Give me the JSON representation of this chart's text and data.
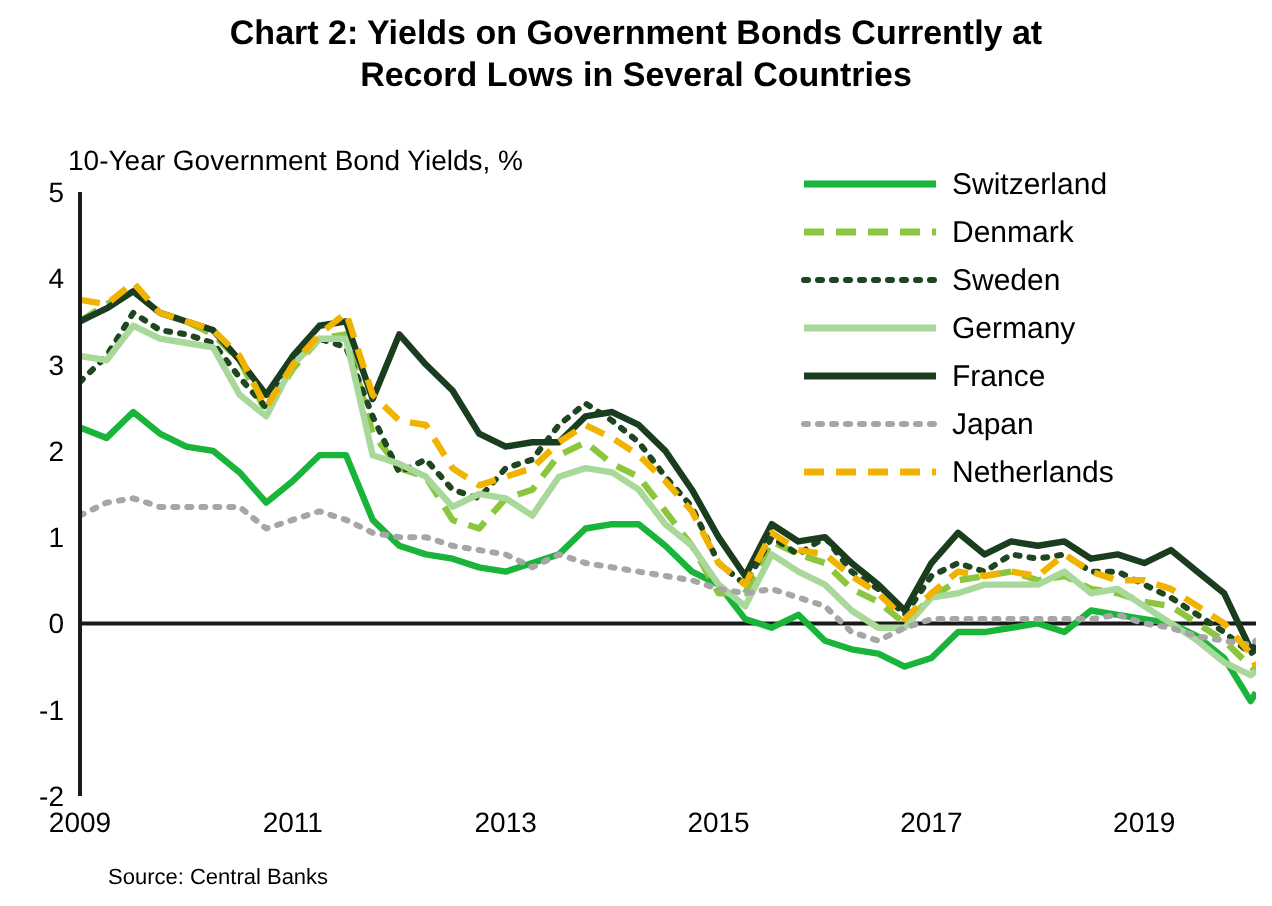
{
  "chart_data": {
    "type": "line",
    "title": "Chart 2: Yields on Government Bonds Currently at Record Lows in Several Countries",
    "ylabel": "10-Year Government Bond Yields, %",
    "x": [
      2009,
      2009.25,
      2009.5,
      2009.75,
      2010,
      2010.25,
      2010.5,
      2010.75,
      2011,
      2011.25,
      2011.5,
      2011.75,
      2012,
      2012.25,
      2012.5,
      2012.75,
      2013,
      2013.25,
      2013.5,
      2013.75,
      2014,
      2014.25,
      2014.5,
      2014.75,
      2015,
      2015.25,
      2015.5,
      2015.75,
      2016,
      2016.25,
      2016.5,
      2016.75,
      2017,
      2017.25,
      2017.5,
      2017.75,
      2018,
      2018.25,
      2018.5,
      2018.75,
      2019,
      2019.25,
      2019.5,
      2019.75,
      2020,
      2020.05
    ],
    "series": [
      {
        "name": "Switzerland",
        "color": "#19b53a",
        "line_style": "solid",
        "values": [
          2.27,
          2.15,
          2.45,
          2.2,
          2.05,
          2.0,
          1.75,
          1.4,
          1.65,
          1.95,
          1.95,
          1.2,
          0.9,
          0.8,
          0.75,
          0.65,
          0.6,
          0.7,
          0.8,
          1.1,
          1.15,
          1.15,
          0.9,
          0.6,
          0.45,
          0.05,
          -0.05,
          0.1,
          -0.2,
          -0.3,
          -0.35,
          -0.5,
          -0.4,
          -0.1,
          -0.1,
          -0.05,
          0.0,
          -0.1,
          0.15,
          0.1,
          0.05,
          0.0,
          -0.15,
          -0.4,
          -0.9,
          -0.8
        ]
      },
      {
        "name": "Denmark",
        "color": "#8cc63e",
        "line_style": "dashed",
        "values": [
          3.5,
          3.7,
          3.85,
          3.6,
          3.5,
          3.35,
          3.05,
          2.45,
          2.95,
          3.3,
          3.35,
          2.2,
          1.8,
          1.7,
          1.2,
          1.1,
          1.45,
          1.55,
          1.95,
          2.1,
          1.85,
          1.7,
          1.3,
          0.9,
          0.35,
          0.35,
          0.95,
          0.8,
          0.7,
          0.4,
          0.25,
          0.0,
          0.3,
          0.5,
          0.55,
          0.6,
          0.5,
          0.55,
          0.4,
          0.35,
          0.25,
          0.2,
          0.0,
          -0.2,
          -0.5,
          -0.55
        ]
      },
      {
        "name": "Sweden",
        "color": "#1e4620",
        "line_style": "dotted",
        "values": [
          2.8,
          3.1,
          3.6,
          3.4,
          3.35,
          3.25,
          2.85,
          2.5,
          3.05,
          3.3,
          3.2,
          2.4,
          1.75,
          1.9,
          1.55,
          1.45,
          1.8,
          1.9,
          2.3,
          2.55,
          2.35,
          2.1,
          1.7,
          1.35,
          0.7,
          0.45,
          1.0,
          0.8,
          1.0,
          0.6,
          0.4,
          0.1,
          0.55,
          0.7,
          0.6,
          0.8,
          0.75,
          0.8,
          0.6,
          0.6,
          0.45,
          0.3,
          0.1,
          -0.1,
          -0.35,
          -0.3
        ]
      },
      {
        "name": "Germany",
        "color": "#a9d89b",
        "line_style": "solid",
        "values": [
          3.1,
          3.05,
          3.45,
          3.3,
          3.25,
          3.2,
          2.65,
          2.4,
          3.0,
          3.3,
          3.3,
          1.95,
          1.85,
          1.7,
          1.35,
          1.5,
          1.45,
          1.25,
          1.7,
          1.8,
          1.75,
          1.55,
          1.15,
          0.9,
          0.45,
          0.2,
          0.8,
          0.6,
          0.45,
          0.15,
          -0.05,
          -0.05,
          0.3,
          0.35,
          0.45,
          0.45,
          0.45,
          0.6,
          0.35,
          0.4,
          0.2,
          0.0,
          -0.2,
          -0.45,
          -0.6,
          -0.55
        ]
      },
      {
        "name": "France",
        "color": "#1a3d1f",
        "line_style": "solid",
        "values": [
          3.5,
          3.65,
          3.85,
          3.6,
          3.5,
          3.4,
          3.05,
          2.65,
          3.1,
          3.45,
          3.5,
          2.6,
          3.35,
          3.0,
          2.7,
          2.2,
          2.05,
          2.1,
          2.1,
          2.4,
          2.45,
          2.3,
          2.0,
          1.55,
          1.0,
          0.55,
          1.15,
          0.95,
          1.0,
          0.7,
          0.45,
          0.15,
          0.7,
          1.05,
          0.8,
          0.95,
          0.9,
          0.95,
          0.75,
          0.8,
          0.7,
          0.85,
          0.6,
          0.35,
          -0.3,
          -0.25
        ]
      },
      {
        "name": "Japan",
        "color": "#a6a6a6",
        "line_style": "dotted",
        "values": [
          1.25,
          1.4,
          1.45,
          1.35,
          1.35,
          1.35,
          1.35,
          1.1,
          1.2,
          1.3,
          1.2,
          1.05,
          1.0,
          1.0,
          0.9,
          0.85,
          0.8,
          0.65,
          0.8,
          0.7,
          0.65,
          0.6,
          0.55,
          0.5,
          0.4,
          0.35,
          0.4,
          0.3,
          0.2,
          -0.1,
          -0.2,
          -0.05,
          0.05,
          0.05,
          0.05,
          0.05,
          0.05,
          0.05,
          0.05,
          0.1,
          0.0,
          -0.05,
          -0.15,
          -0.2,
          -0.25,
          -0.2
        ]
      },
      {
        "name": "Netherlands",
        "color": "#f0b400",
        "line_style": "dashed",
        "values": [
          3.75,
          3.7,
          3.95,
          3.6,
          3.5,
          3.4,
          3.1,
          2.5,
          3.0,
          3.35,
          3.6,
          2.65,
          2.35,
          2.3,
          1.8,
          1.6,
          1.7,
          1.8,
          2.1,
          2.3,
          2.15,
          1.95,
          1.65,
          1.3,
          0.7,
          0.45,
          1.05,
          0.85,
          0.8,
          0.55,
          0.35,
          0.05,
          0.35,
          0.6,
          0.55,
          0.6,
          0.55,
          0.8,
          0.6,
          0.5,
          0.5,
          0.4,
          0.2,
          0.0,
          -0.35,
          -0.5
        ]
      }
    ],
    "xlim": [
      2009,
      2020.05
    ],
    "xticks": [
      2009,
      2011,
      2013,
      2015,
      2017,
      2019
    ],
    "ylim": [
      -2,
      5
    ],
    "yticks": [
      -2,
      -1,
      0,
      1,
      2,
      3,
      4,
      5
    ],
    "ref_lines": [
      {
        "axis": "y",
        "value": 0,
        "color": "#1a1a1a"
      }
    ],
    "grid": false,
    "legend": "top right",
    "marker": "none",
    "annotations": [
      "Source: Central Banks"
    ]
  }
}
